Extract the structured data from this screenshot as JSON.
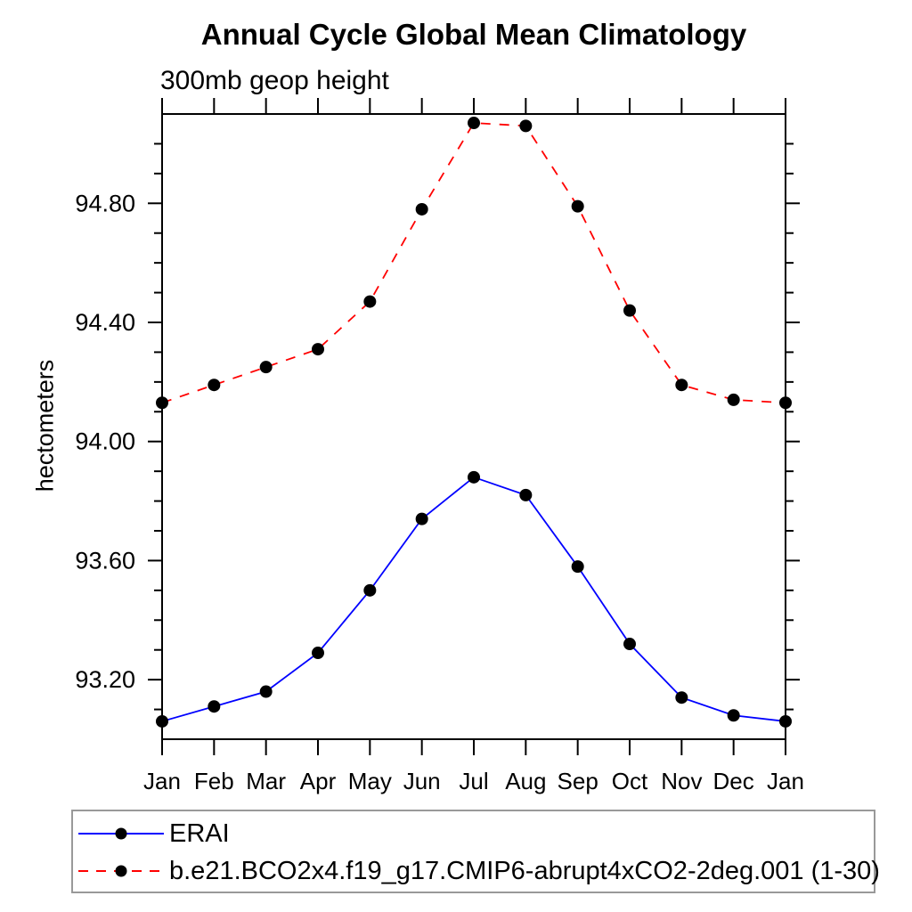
{
  "title": "Annual Cycle Global Mean Climatology",
  "subtitle": "300mb geop height",
  "y_axis": {
    "label": "hectometers",
    "major_tick_labels": [
      "93.20",
      "93.60",
      "94.00",
      "94.40",
      "94.80"
    ]
  },
  "x_axis": {
    "tick_labels": [
      "Jan",
      "Feb",
      "Mar",
      "Apr",
      "May",
      "Jun",
      "Jul",
      "Aug",
      "Sep",
      "Oct",
      "Nov",
      "Dec",
      "Jan"
    ]
  },
  "legend": {
    "items": [
      {
        "label": "ERAI",
        "color": "#0000ff",
        "line_style": "solid",
        "marker": "filled-circle"
      },
      {
        "label": "b.e21.BCO2x4.f19_g17.CMIP6-abrupt4xCO2-2deg.001 (1-30)",
        "color": "#ff0000",
        "line_style": "dashed",
        "marker": "filled-circle"
      }
    ]
  },
  "colors": {
    "erai_line": "#0000ff",
    "cmip6_line": "#ff0000",
    "marker": "#000000",
    "axis": "#000000",
    "legend_border": "#999999"
  },
  "chart_data": {
    "type": "line",
    "title": "Annual Cycle Global Mean Climatology",
    "subtitle": "300mb geop height",
    "ylabel": "hectometers",
    "categories": [
      "Jan",
      "Feb",
      "Mar",
      "Apr",
      "May",
      "Jun",
      "Jul",
      "Aug",
      "Sep",
      "Oct",
      "Nov",
      "Dec",
      "Jan"
    ],
    "series": [
      {
        "name": "ERAI",
        "color": "#0000ff",
        "line_style": "solid",
        "marker": "filled-circle",
        "values": [
          93.06,
          93.11,
          93.16,
          93.29,
          93.5,
          93.74,
          93.88,
          93.82,
          93.58,
          93.32,
          93.14,
          93.08,
          93.06
        ]
      },
      {
        "name": "b.e21.BCO2x4.f19_g17.CMIP6-abrupt4xCO2-2deg.001 (1-30)",
        "color": "#ff0000",
        "line_style": "dashed",
        "marker": "filled-circle",
        "values": [
          94.13,
          94.19,
          94.25,
          94.31,
          94.47,
          94.78,
          95.07,
          95.06,
          94.79,
          94.44,
          94.19,
          94.14,
          94.13
        ]
      }
    ],
    "ylim": [
      93.0,
      95.1
    ],
    "y_major_ticks": [
      93.2,
      93.6,
      94.0,
      94.4,
      94.8
    ],
    "y_minor_tick_interval": 0.1,
    "grid": false,
    "legend_position": "below"
  }
}
